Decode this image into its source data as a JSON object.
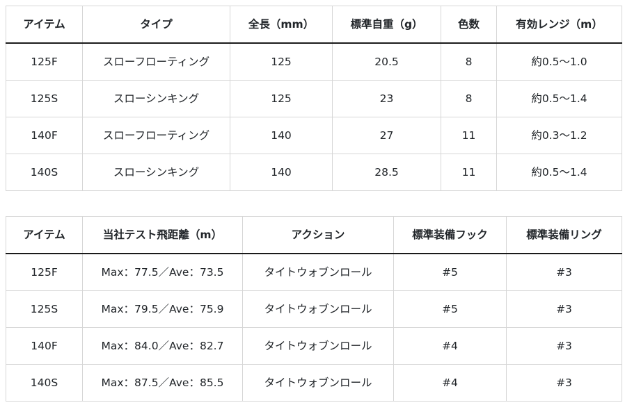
{
  "colors": {
    "text": "#212529",
    "grid_border": "#d6d6d6",
    "header_rule": "#1a1a1a",
    "background": "#ffffff"
  },
  "tables": [
    {
      "name": "spec-table",
      "headers": [
        "アイテム",
        "タイプ",
        "全長（mm）",
        "標準自重（g）",
        "色数",
        "有効レンジ（m）"
      ],
      "rows": [
        [
          "125F",
          "スローフローティング",
          "125",
          "20.5",
          "8",
          "約0.5〜1.0"
        ],
        [
          "125S",
          "スローシンキング",
          "125",
          "23",
          "8",
          "約0.5〜1.4"
        ],
        [
          "140F",
          "スローフローティング",
          "140",
          "27",
          "11",
          "約0.3〜1.2"
        ],
        [
          "140S",
          "スローシンキング",
          "140",
          "28.5",
          "11",
          "約0.5〜1.4"
        ]
      ]
    },
    {
      "name": "performance-table",
      "headers": [
        "アイテム",
        "当社テスト飛距離（m）",
        "アクション",
        "標準装備フック",
        "標準装備リング"
      ],
      "rows": [
        [
          "125F",
          "Max：77.5／Ave：73.5",
          "タイトウォブンロール",
          "#5",
          "#3"
        ],
        [
          "125S",
          "Max：79.5／Ave：75.9",
          "タイトウォブンロール",
          "#5",
          "#3"
        ],
        [
          "140F",
          "Max：84.0／Ave：82.7",
          "タイトウォブンロール",
          "#4",
          "#3"
        ],
        [
          "140S",
          "Max：87.5／Ave：85.5",
          "タイトウォブンロール",
          "#4",
          "#3"
        ]
      ]
    }
  ]
}
